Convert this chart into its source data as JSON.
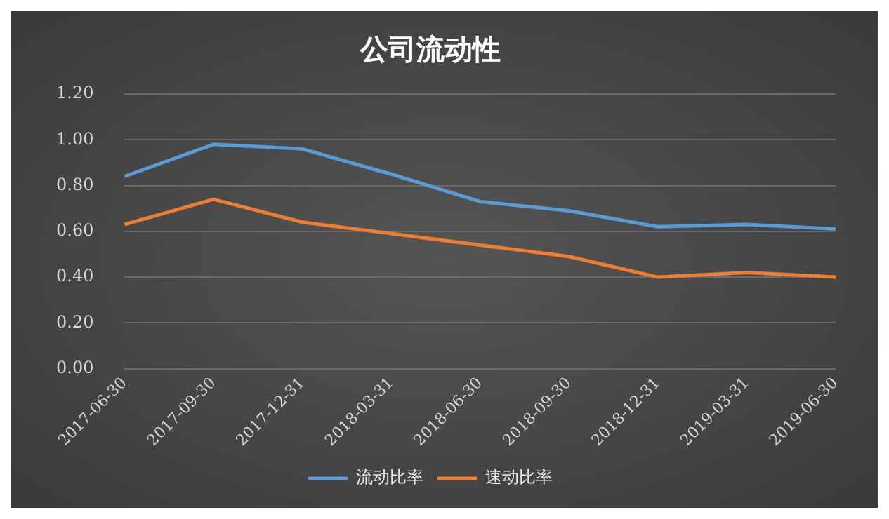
{
  "chart_data": {
    "type": "line",
    "title": "公司流动性",
    "categories": [
      "2017-06-30",
      "2017-09-30",
      "2017-12-31",
      "2018-03-31",
      "2018-06-30",
      "2018-09-30",
      "2018-12-31",
      "2019-03-31",
      "2019-06-30"
    ],
    "series": [
      {
        "name": "流动比率",
        "color": "#5b9bd5",
        "values": [
          0.84,
          0.98,
          0.96,
          0.85,
          0.73,
          0.69,
          0.62,
          0.63,
          0.61
        ]
      },
      {
        "name": "速动比率",
        "color": "#ed7d31",
        "values": [
          0.63,
          0.74,
          0.64,
          0.59,
          0.54,
          0.49,
          0.4,
          0.42,
          0.4
        ]
      }
    ],
    "ylim": [
      0,
      1.2
    ],
    "yticks": [
      {
        "value": 0,
        "label": "0.00"
      },
      {
        "value": 0.2,
        "label": "0.20"
      },
      {
        "value": 0.4,
        "label": "0.40"
      },
      {
        "value": 0.6,
        "label": "0.60"
      },
      {
        "value": 0.8,
        "label": "0.80"
      },
      {
        "value": 1,
        "label": "1.00"
      },
      {
        "value": 1.2,
        "label": "1.20"
      }
    ],
    "grid": "y",
    "legend": "bottom",
    "marker": "none",
    "line_style": "solid"
  }
}
